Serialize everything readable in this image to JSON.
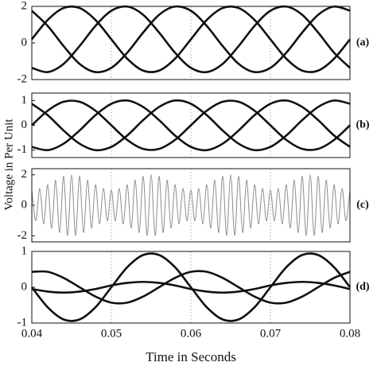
{
  "ylabel": "Voltage in Per Unit",
  "chart_data": [
    {
      "type": "line",
      "label": "(a)",
      "ylim": [
        -2,
        2
      ],
      "yticks": [
        -2,
        0,
        2
      ],
      "xlim": [
        0.04,
        0.08
      ],
      "xticks": [
        0.04,
        0.05,
        0.06,
        0.07,
        0.08
      ],
      "show_xtick_labels": false,
      "grid": true,
      "x": [
        0.04,
        0.042,
        0.044,
        0.046,
        0.048,
        0.05,
        0.052,
        0.054,
        0.056,
        0.058,
        0.06,
        0.062,
        0.064,
        0.066,
        0.068,
        0.07,
        0.072,
        0.074,
        0.076,
        0.078,
        0.08
      ],
      "series": [
        {
          "color": "#111111",
          "values": [
            0.2,
            1.26,
            1.91,
            1.91,
            1.26,
            0.2,
            -0.86,
            -1.51,
            -1.51,
            -0.86,
            0.2,
            1.26,
            1.91,
            1.91,
            1.26,
            0.2,
            -0.86,
            -1.51,
            -1.51,
            -0.86,
            0.2
          ]
        },
        {
          "color": "#111111",
          "values": [
            -1.36,
            -1.59,
            -1.14,
            -0.17,
            0.93,
            1.76,
            1.99,
            1.54,
            0.57,
            -0.53,
            -1.36,
            -1.59,
            -1.14,
            -0.17,
            0.93,
            1.76,
            1.99,
            1.54,
            0.57,
            -0.53,
            -1.36
          ]
        },
        {
          "color": "#111111",
          "values": [
            1.76,
            0.93,
            -0.17,
            -1.14,
            -1.59,
            -1.36,
            -0.53,
            0.57,
            1.54,
            1.99,
            1.76,
            0.93,
            -0.17,
            -1.14,
            -1.59,
            -1.36,
            -0.53,
            0.57,
            1.54,
            1.99,
            1.76
          ]
        }
      ]
    },
    {
      "type": "line",
      "label": "(b)",
      "ylim": [
        -1.3,
        1.3
      ],
      "yticks": [
        -1,
        0,
        1
      ],
      "xlim": [
        0.04,
        0.08
      ],
      "xticks": [
        0.04,
        0.05,
        0.06,
        0.07,
        0.08
      ],
      "show_xtick_labels": false,
      "grid": true,
      "x": [
        0.04,
        0.042,
        0.044,
        0.046,
        0.048,
        0.05,
        0.052,
        0.054,
        0.056,
        0.058,
        0.06,
        0.062,
        0.064,
        0.066,
        0.068,
        0.07,
        0.072,
        0.074,
        0.076,
        0.078,
        0.08
      ],
      "series": [
        {
          "color": "#111111",
          "values": [
            0,
            0.59,
            0.95,
            0.95,
            0.59,
            0,
            -0.59,
            -0.95,
            -0.95,
            -0.59,
            0,
            0.59,
            0.95,
            0.95,
            0.59,
            0,
            -0.59,
            -0.95,
            -0.95,
            -0.59,
            0
          ]
        },
        {
          "color": "#111111",
          "values": [
            -0.87,
            -1,
            -0.74,
            -0.21,
            0.41,
            0.87,
            1,
            0.74,
            0.21,
            -0.41,
            -0.87,
            -1,
            -0.74,
            -0.21,
            0.41,
            0.87,
            1,
            0.74,
            0.21,
            -0.41,
            -0.87
          ]
        },
        {
          "color": "#111111",
          "values": [
            0.87,
            0.41,
            -0.21,
            -0.74,
            -1,
            -0.87,
            -0.41,
            0.21,
            0.74,
            1,
            0.87,
            0.41,
            -0.21,
            -0.74,
            -1,
            -0.87,
            -0.41,
            0.21,
            0.74,
            1,
            0.87
          ]
        }
      ]
    },
    {
      "type": "line",
      "label": "(c)",
      "ylim": [
        -2.4,
        2.4
      ],
      "yticks": [
        -2,
        0,
        2
      ],
      "xlim": [
        0.04,
        0.08
      ],
      "xticks": [
        0.04,
        0.05,
        0.06,
        0.07,
        0.08
      ],
      "show_xtick_labels": false,
      "grid": true,
      "x": [
        0.04,
        0.0405,
        0.041,
        0.0415,
        0.042,
        0.0425,
        0.043,
        0.0435,
        0.044,
        0.0445,
        0.045,
        0.0455,
        0.046,
        0.0465,
        0.047,
        0.0475,
        0.048,
        0.0485,
        0.049,
        0.0495,
        0.05,
        0.0505,
        0.051,
        0.0515,
        0.052,
        0.0525,
        0.053,
        0.0535,
        0.054,
        0.0545,
        0.055,
        0.0555,
        0.056,
        0.0565,
        0.057,
        0.0575,
        0.058,
        0.0585,
        0.059,
        0.0595,
        0.06,
        0.0605,
        0.061,
        0.0615,
        0.062,
        0.0625,
        0.063,
        0.0635,
        0.064,
        0.0645,
        0.065,
        0.0655,
        0.066,
        0.0665,
        0.067,
        0.0675,
        0.068,
        0.0685,
        0.069,
        0.0695,
        0.07,
        0.0705,
        0.071,
        0.0715,
        0.072,
        0.0725,
        0.073,
        0.0735,
        0.074,
        0.0745,
        0.075,
        0.0755,
        0.076,
        0.0765,
        0.077,
        0.0775,
        0.078,
        0.0785,
        0.079,
        0.0795,
        0.08
      ],
      "series": [
        {
          "color": "#8c8c8c",
          "values": [
            1.0,
            -1.02,
            1.1,
            -1.21,
            1.35,
            -1.5,
            1.65,
            -1.79,
            1.9,
            -1.98,
            2.0,
            -1.98,
            1.9,
            -1.79,
            1.65,
            -1.5,
            1.35,
            -1.21,
            1.1,
            -1.02,
            1.0,
            -1.02,
            1.1,
            -1.21,
            1.35,
            -1.5,
            1.65,
            -1.79,
            1.9,
            -1.98,
            2.0,
            -1.98,
            1.9,
            -1.79,
            1.65,
            -1.5,
            1.35,
            -1.21,
            1.1,
            -1.02,
            1.0,
            -1.02,
            1.1,
            -1.21,
            1.35,
            -1.5,
            1.65,
            -1.79,
            1.9,
            -1.98,
            2.0,
            -1.98,
            1.9,
            -1.79,
            1.65,
            -1.5,
            1.35,
            -1.21,
            1.1,
            -1.02,
            1.0,
            -1.02,
            1.1,
            -1.21,
            1.35,
            -1.5,
            1.65,
            -1.79,
            1.9,
            -1.98,
            2.0,
            -1.98,
            1.9,
            -1.79,
            1.65,
            -1.5,
            1.35,
            -1.21,
            1.1,
            -1.02,
            1.0
          ]
        }
      ]
    },
    {
      "type": "line",
      "label": "(d)",
      "ylim": [
        -1,
        1
      ],
      "yticks": [
        -1,
        0,
        1
      ],
      "xlim": [
        0.04,
        0.08
      ],
      "xticks": [
        0.04,
        0.05,
        0.06,
        0.07,
        0.08
      ],
      "show_xtick_labels": true,
      "grid": true,
      "xlabel": "Time in Seconds",
      "x": [
        0.04,
        0.042,
        0.044,
        0.046,
        0.048,
        0.05,
        0.052,
        0.054,
        0.056,
        0.058,
        0.06,
        0.062,
        0.064,
        0.066,
        0.068,
        0.07,
        0.072,
        0.074,
        0.076,
        0.078,
        0.08
      ],
      "series": [
        {
          "color": "#111111",
          "values": [
            0,
            -0.56,
            -0.9,
            -0.9,
            -0.56,
            0,
            0.56,
            0.9,
            0.9,
            0.56,
            0,
            -0.56,
            -0.9,
            -0.9,
            -0.56,
            0,
            0.56,
            0.9,
            0.9,
            0.56,
            0
          ]
        },
        {
          "color": "#111111",
          "values": [
            0.43,
            0.43,
            0.26,
            0,
            -0.26,
            -0.43,
            -0.43,
            -0.26,
            0,
            0.26,
            0.43,
            0.43,
            0.26,
            0,
            -0.26,
            -0.43,
            -0.43,
            -0.26,
            0,
            0.26,
            0.43
          ]
        },
        {
          "color": "#111111",
          "values": [
            -0.05,
            -0.12,
            -0.15,
            -0.12,
            -0.05,
            0.05,
            0.12,
            0.15,
            0.12,
            0.05,
            -0.05,
            -0.12,
            -0.15,
            -0.12,
            -0.05,
            0.05,
            0.12,
            0.15,
            0.12,
            0.05,
            -0.05
          ]
        }
      ]
    }
  ]
}
